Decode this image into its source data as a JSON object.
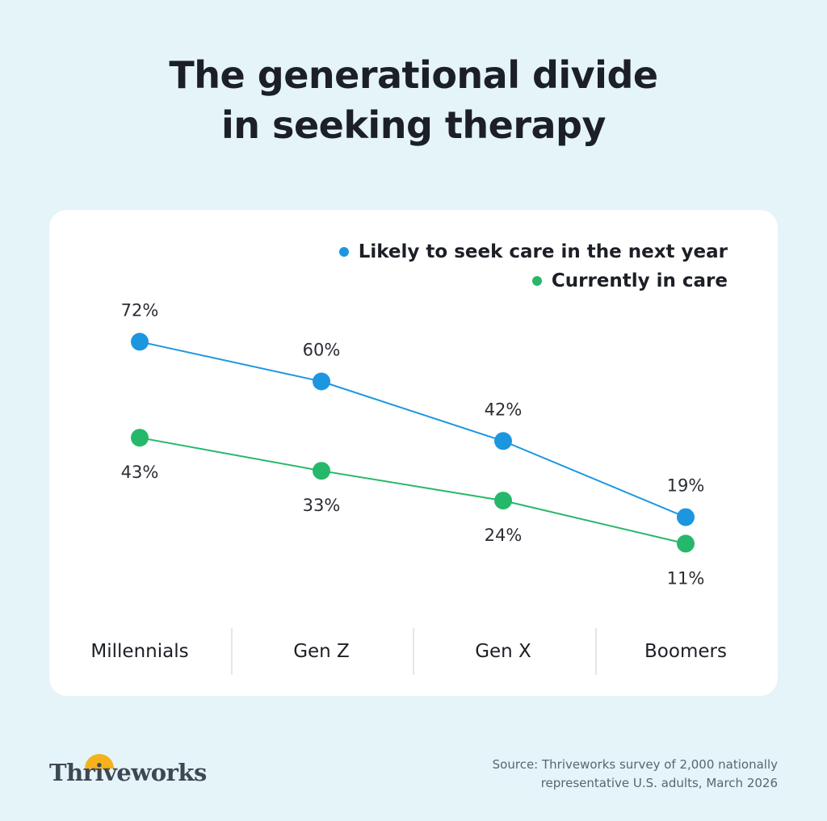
{
  "title_lines": [
    "The generational divide",
    "in seeking therapy"
  ],
  "chart_data": {
    "type": "line",
    "categories": [
      "Millennials",
      "Gen Z",
      "Gen X",
      "Boomers"
    ],
    "series": [
      {
        "name": "Likely to seek care in the next year",
        "values": [
          72,
          60,
          42,
          19
        ],
        "labels": [
          "72%",
          "60%",
          "42%",
          "19%"
        ],
        "color": "#1d96e0",
        "label_position": "above"
      },
      {
        "name": "Currently in care",
        "values": [
          43,
          33,
          24,
          11
        ],
        "labels": [
          "43%",
          "33%",
          "24%",
          "11%"
        ],
        "color": "#26b86a",
        "label_position": "below"
      }
    ],
    "legend_position": "top-right",
    "grid": false
  },
  "source_lines": [
    "Source: Thriveworks survey of 2,000 nationally",
    "representative U.S. adults, March 2026"
  ],
  "brand": {
    "name": "Thriveworks",
    "sun_color": "#f5b21b"
  }
}
